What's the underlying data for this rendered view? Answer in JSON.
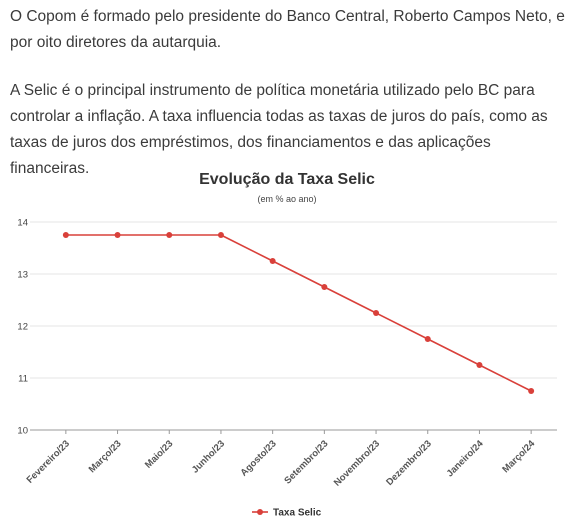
{
  "article": {
    "paragraph_1": "O Copom é formado pelo presidente do Banco Central, Roberto Campos Neto, e por oito diretores da autarquia.",
    "paragraph_2": "A Selic é o principal instrumento de política monetária utilizado pelo BC para controlar a inflação. A taxa influencia todas as taxas de juros do país, como as taxas de juros dos empréstimos, dos financiamentos e das aplicações financeiras."
  },
  "chart_data": {
    "type": "line",
    "title": "Evolução da Taxa Selic",
    "subtitle": "(em % ao ano)",
    "xlabel": "",
    "ylabel": "",
    "categories": [
      "Fevereiro/23",
      "Março/23",
      "Maio/23",
      "Junho/23",
      "Agosto/23",
      "Setembro/23",
      "Novembro/23",
      "Dezembro/23",
      "Janeiro/24",
      "Março/24"
    ],
    "series": [
      {
        "name": "Taxa Selic",
        "color": "#d9403a",
        "values": [
          13.75,
          13.75,
          13.75,
          13.75,
          13.25,
          12.75,
          12.25,
          11.75,
          11.25,
          10.75
        ]
      }
    ],
    "ylim": [
      10,
      14
    ],
    "yticks": [
      10,
      11,
      12,
      13,
      14
    ],
    "grid": true,
    "legend_position": "bottom-center"
  }
}
